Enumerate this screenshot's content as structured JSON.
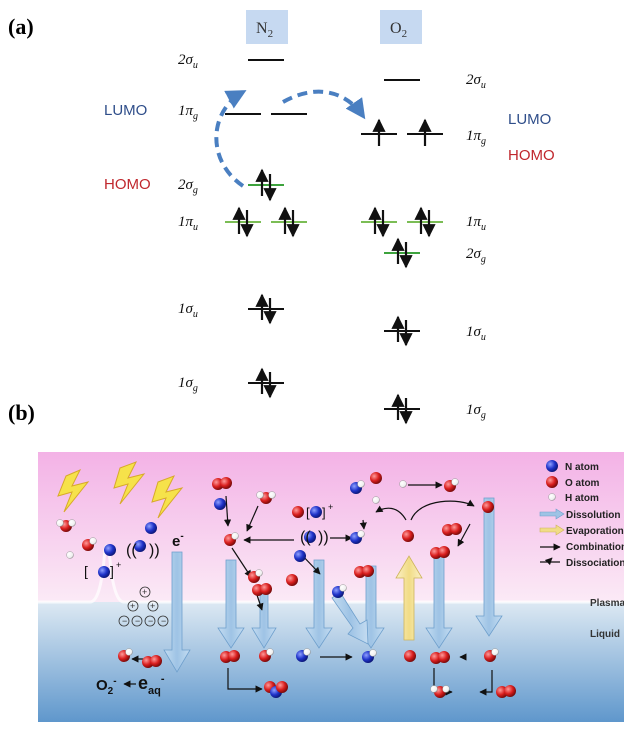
{
  "panel_a": {
    "label": "(a)",
    "columns": {
      "n2": "N",
      "n2_sub": "2",
      "o2": "O",
      "o2_sub": "2"
    },
    "levels": [
      {
        "id": "2su",
        "base": "2σ",
        "sub": "u"
      },
      {
        "id": "1pg",
        "base": "1π",
        "sub": "g"
      },
      {
        "id": "2sg",
        "base": "2σ",
        "sub": "g"
      },
      {
        "id": "1pu",
        "base": "1π",
        "sub": "u"
      },
      {
        "id": "1su",
        "base": "1σ",
        "sub": "u"
      },
      {
        "id": "1sg",
        "base": "1σ",
        "sub": "g"
      }
    ],
    "n2_lumo": "LUMO",
    "n2_homo": "HOMO",
    "o2_lumo": "LUMO",
    "o2_homo": "HOMO",
    "colors": {
      "lumo": "#2f4e8a",
      "homo": "#c0272d",
      "header_bg": "#c6d9f1",
      "arrow": "#4a7fc1",
      "green_line": "#3da33d"
    }
  },
  "panel_b": {
    "label": "(b)",
    "charge_symbols": {
      "electron": "e",
      "electron_sup": "-",
      "aq": "e",
      "aq_sub": "aq",
      "aq_sup": "-",
      "o2minus": "O",
      "o2minus_sub": "2",
      "o2minus_sup": "-"
    },
    "ion_labels": {
      "n_plus": "+",
      "n2_plus": "+"
    },
    "regions": {
      "plasma": "Plasma",
      "liquid": "Liquid"
    },
    "legend": [
      {
        "label": "N atom",
        "kind": "n-atom"
      },
      {
        "label": "O atom",
        "kind": "o-atom"
      },
      {
        "label": "H atom",
        "kind": "h-atom"
      },
      {
        "label": "Dissolution",
        "kind": "dissolution-arrow"
      },
      {
        "label": "Evaporation",
        "kind": "evaporation-arrow"
      },
      {
        "label": "Combination",
        "kind": "combination-arrow"
      },
      {
        "label": "Dissociation",
        "kind": "dissociation-arrow"
      }
    ],
    "colors": {
      "plasma_top": "#f3b6e8",
      "plasma_bottom": "#fbe6f6",
      "liquid_top": "#d9e9f5",
      "liquid_bottom": "#6fa3d2",
      "n_atom": "#1f33c9",
      "o_atom": "#d91e1e",
      "h_atom": "#ffffff",
      "dissolution": "#a9cbe8",
      "evaporation": "#f6e7a6",
      "lightning": "#f6e24a"
    }
  }
}
